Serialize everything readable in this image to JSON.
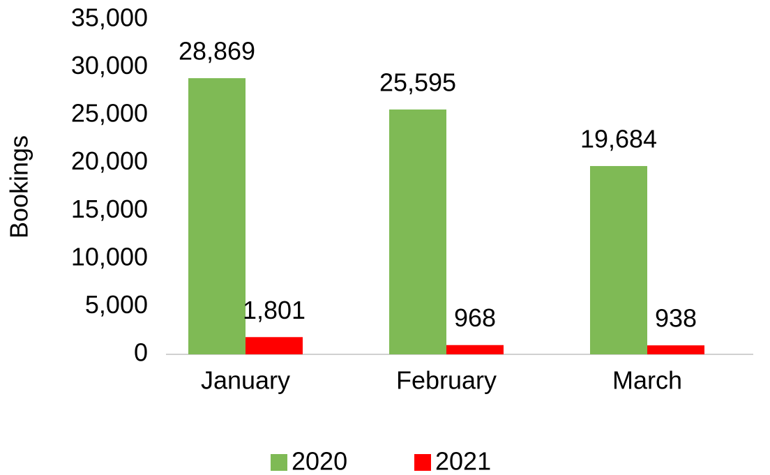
{
  "chart_data": {
    "type": "bar",
    "y_label": "Bookings",
    "categories": [
      "January",
      "February",
      "March"
    ],
    "series": [
      {
        "name": "2020",
        "color": "#7fba55",
        "values": [
          28869,
          25595,
          19684
        ],
        "value_labels": [
          "28,869",
          "25,595",
          "19,684"
        ]
      },
      {
        "name": "2021",
        "color": "#ff0000",
        "values": [
          1801,
          968,
          938
        ],
        "value_labels": [
          "1,801",
          "968",
          "938"
        ]
      }
    ],
    "ylim": [
      0,
      35000
    ],
    "yticks": [
      0,
      {
        "value": 5000,
        "label": "5,000"
      },
      {
        "value": 10000,
        "label": "10,000"
      },
      {
        "value": 15000,
        "label": "15,000"
      },
      {
        "value": 20000,
        "label": "20,000"
      },
      {
        "value": 25000,
        "label": "25,000"
      },
      {
        "value": 30000,
        "label": "30,000"
      },
      {
        "value": 35000,
        "label": "35,000"
      }
    ],
    "grid": false,
    "legend": "bottom"
  }
}
